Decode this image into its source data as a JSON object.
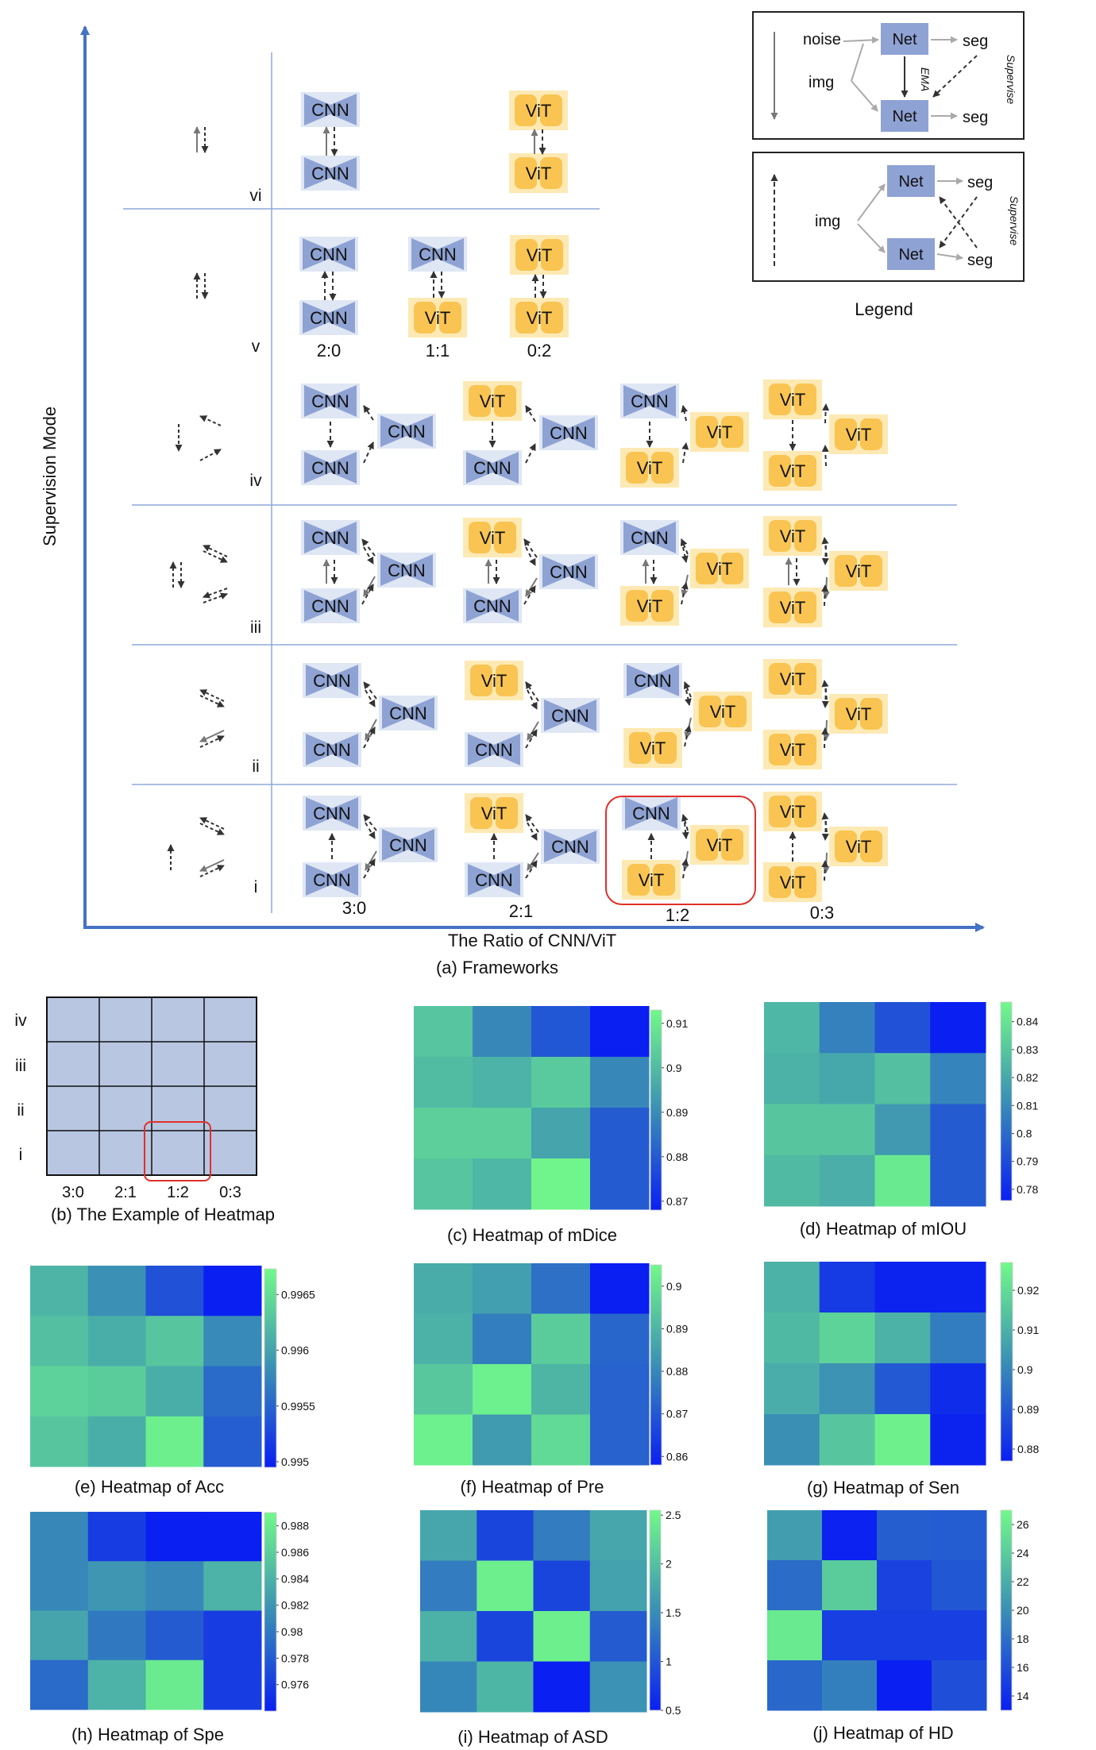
{
  "frameworks": {
    "y_axis_label": "Supervision Mode",
    "x_axis_label": "The Ratio of CNN/ViT",
    "caption": "(a) Frameworks",
    "row_labels": [
      "vi",
      "v",
      "iv",
      "iii",
      "ii",
      "i"
    ],
    "ratio_labels_v": [
      "2:0",
      "1:1",
      "0:2"
    ],
    "ratio_labels_i": [
      "3:0",
      "2:1",
      "1:2",
      "0:3"
    ],
    "node_cnn": "CNN",
    "node_vit": "ViT"
  },
  "legend": {
    "title": "Legend",
    "noise": "noise",
    "img": "img",
    "net": "Net",
    "seg": "seg",
    "ema": "EMA",
    "supervise": "Supervise"
  },
  "example": {
    "caption": "(b) The Example of Heatmap",
    "row_labels": [
      "iv",
      "iii",
      "ii",
      "i"
    ],
    "col_labels": [
      "3:0",
      "2:1",
      "1:2",
      "0:3"
    ]
  },
  "chart_data": [
    {
      "type": "heatmap",
      "title": "(c) Heatmap of mDice",
      "rows": [
        "iv",
        "iii",
        "ii",
        "i"
      ],
      "cols": [
        "3:0",
        "2:1",
        "1:2",
        "0:3"
      ],
      "values": [
        [
          0.902,
          0.889,
          0.879,
          0.868
        ],
        [
          0.9,
          0.898,
          0.903,
          0.889
        ],
        [
          0.904,
          0.904,
          0.895,
          0.88
        ],
        [
          0.902,
          0.899,
          0.912,
          0.88
        ]
      ],
      "range": [
        0.868,
        0.913
      ],
      "ticks": [
        "0.91",
        "0.9",
        "0.89",
        "0.88",
        "0.87"
      ]
    },
    {
      "type": "heatmap",
      "title": "(d) Heatmap of mIOU",
      "rows": [
        "iv",
        "iii",
        "ii",
        "i"
      ],
      "cols": [
        "3:0",
        "2:1",
        "1:2",
        "0:3"
      ],
      "values": [
        [
          0.825,
          0.807,
          0.792,
          0.776
        ],
        [
          0.823,
          0.82,
          0.828,
          0.808
        ],
        [
          0.83,
          0.83,
          0.815,
          0.795
        ],
        [
          0.826,
          0.822,
          0.842,
          0.795
        ]
      ],
      "range": [
        0.776,
        0.847
      ],
      "ticks": [
        "0.84",
        "0.83",
        "0.82",
        "0.81",
        "0.8",
        "0.79",
        "0.78"
      ]
    },
    {
      "type": "heatmap",
      "title": "(e) Heatmap of Acc",
      "rows": [
        "iv",
        "iii",
        "ii",
        "i"
      ],
      "cols": [
        "3:0",
        "2:1",
        "1:2",
        "0:3"
      ],
      "values": [
        [
          0.99615,
          0.99585,
          0.99535,
          0.99495
        ],
        [
          0.99625,
          0.9961,
          0.9963,
          0.9958
        ],
        [
          0.9964,
          0.99635,
          0.9961,
          0.99555
        ],
        [
          0.9963,
          0.9961,
          0.99665,
          0.99545
        ]
      ],
      "range": [
        0.99495,
        0.99673
      ],
      "ticks": [
        "0.9965",
        "0.996",
        "0.9955",
        "0.995"
      ]
    },
    {
      "type": "heatmap",
      "title": "(f) Heatmap of Pre",
      "rows": [
        "iv",
        "iii",
        "ii",
        "i"
      ],
      "cols": [
        "3:0",
        "2:1",
        "1:2",
        "0:3"
      ],
      "values": [
        [
          0.888,
          0.885,
          0.875,
          0.858
        ],
        [
          0.889,
          0.878,
          0.895,
          0.873
        ],
        [
          0.894,
          0.903,
          0.89,
          0.872
        ],
        [
          0.903,
          0.884,
          0.898,
          0.872
        ]
      ],
      "range": [
        0.858,
        0.905
      ],
      "ticks": [
        "0.9",
        "0.89",
        "0.88",
        "0.87",
        "0.86"
      ]
    },
    {
      "type": "heatmap",
      "title": "(g) Heatmap of Sen",
      "rows": [
        "iv",
        "iii",
        "ii",
        "i"
      ],
      "cols": [
        "3:0",
        "2:1",
        "1:2",
        "0:3"
      ],
      "values": [
        [
          0.91,
          0.883,
          0.878,
          0.878
        ],
        [
          0.912,
          0.918,
          0.91,
          0.898
        ],
        [
          0.909,
          0.903,
          0.89,
          0.88
        ],
        [
          0.902,
          0.915,
          0.925,
          0.878
        ]
      ],
      "range": [
        0.877,
        0.927
      ],
      "ticks": [
        "0.92",
        "0.91",
        "0.9",
        "0.89",
        "0.88"
      ]
    },
    {
      "type": "heatmap",
      "title": "(h) Heatmap of Spe",
      "rows": [
        "iv",
        "iii",
        "ii",
        "i"
      ],
      "cols": [
        "3:0",
        "2:1",
        "1:2",
        "0:3"
      ],
      "values": [
        [
          0.981,
          0.976,
          0.974,
          0.974
        ],
        [
          0.981,
          0.982,
          0.981,
          0.984
        ],
        [
          0.983,
          0.98,
          0.978,
          0.976
        ],
        [
          0.979,
          0.984,
          0.988,
          0.976
        ]
      ],
      "range": [
        0.974,
        0.989
      ],
      "ticks": [
        "0.988",
        "0.986",
        "0.984",
        "0.982",
        "0.98",
        "0.978",
        "0.976"
      ]
    },
    {
      "type": "heatmap",
      "title": "(i) Heatmap of ASD",
      "rows": [
        "iv",
        "iii",
        "ii",
        "i"
      ],
      "cols": [
        "3:0",
        "2:1",
        "1:2",
        "0:3"
      ],
      "values": [
        [
          1.75,
          0.85,
          1.35,
          1.75
        ],
        [
          1.35,
          2.45,
          0.85,
          1.7
        ],
        [
          1.85,
          0.85,
          2.45,
          1.05
        ],
        [
          1.45,
          1.9,
          0.5,
          1.55
        ]
      ],
      "range": [
        0.5,
        2.55
      ],
      "ticks": [
        "2.5",
        "2",
        "1.5",
        "1",
        "0.5"
      ]
    },
    {
      "type": "heatmap",
      "title": "(j) Heatmap of HD",
      "rows": [
        "iv",
        "iii",
        "ii",
        "i"
      ],
      "cols": [
        "3:0",
        "2:1",
        "1:2",
        "0:3"
      ],
      "values": [
        [
          21.0,
          13.2,
          17.0,
          16.8
        ],
        [
          17.8,
          24.0,
          15.2,
          16.5
        ],
        [
          26.0,
          15.0,
          15.0,
          15.0
        ],
        [
          17.5,
          19.0,
          13.0,
          16.0
        ]
      ],
      "range": [
        13.0,
        27.0
      ],
      "ticks": [
        "26",
        "24",
        "22",
        "20",
        "18",
        "16",
        "14"
      ]
    }
  ]
}
